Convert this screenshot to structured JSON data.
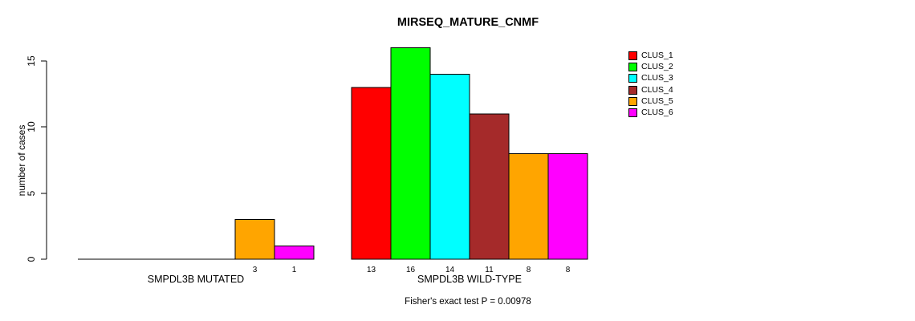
{
  "chart_data": {
    "type": "bar",
    "title": "MIRSEQ_MATURE_CNMF",
    "ylabel": "number of cases",
    "yticks": [
      0,
      5,
      10,
      15
    ],
    "ylim": [
      0,
      16
    ],
    "grid": false,
    "legend_position": "top-right",
    "footnote": "Fisher's exact test P = 0.00978",
    "legend": {
      "entries": [
        {
          "label": "CLUS_1",
          "color": "#FF0000"
        },
        {
          "label": "CLUS_2",
          "color": "#00FF00"
        },
        {
          "label": "CLUS_3",
          "color": "#00FFFF"
        },
        {
          "label": "CLUS_4",
          "color": "#A52A2A"
        },
        {
          "label": "CLUS_5",
          "color": "#FFA500"
        },
        {
          "label": "CLUS_6",
          "color": "#FF00FF"
        }
      ]
    },
    "groups": [
      {
        "label": "SMPDL3B MUTATED",
        "values": [
          0,
          0,
          0,
          0,
          3,
          1
        ],
        "bar_labels": [
          "",
          "",
          "",
          "",
          "3",
          "1"
        ]
      },
      {
        "label": "SMPDL3B WILD-TYPE",
        "values": [
          13,
          16,
          14,
          11,
          8,
          8
        ],
        "bar_labels": [
          "13",
          "16",
          "14",
          "11",
          "8",
          "8"
        ]
      }
    ]
  }
}
